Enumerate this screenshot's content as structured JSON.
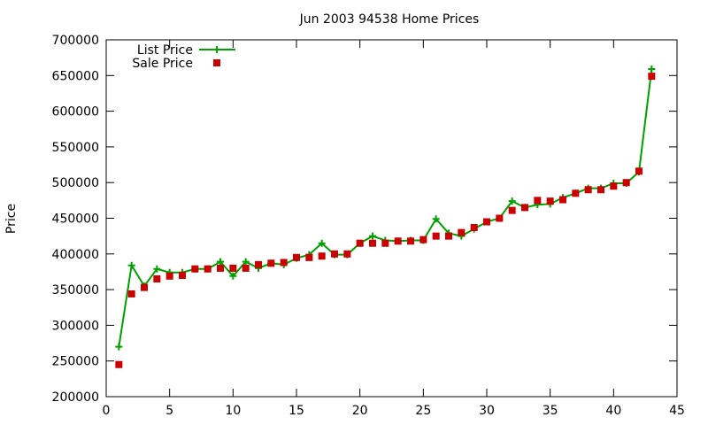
{
  "chart_data": {
    "type": "line",
    "title": "Jun 2003 94538 Home Prices",
    "xlabel": "",
    "ylabel": "Price",
    "xlim": [
      0,
      45
    ],
    "ylim": [
      200000,
      700000
    ],
    "xticks": [
      0,
      5,
      10,
      15,
      20,
      25,
      30,
      35,
      40,
      45
    ],
    "yticks": [
      200000,
      250000,
      300000,
      350000,
      400000,
      450000,
      500000,
      550000,
      600000,
      650000,
      700000
    ],
    "grid": false,
    "legend_position": "top-left",
    "series": [
      {
        "name": "List Price",
        "style": "line-with-plus-markers",
        "color": "#00a000",
        "x": [
          1,
          2,
          3,
          4,
          5,
          6,
          7,
          8,
          9,
          10,
          11,
          12,
          13,
          14,
          15,
          16,
          17,
          18,
          19,
          20,
          21,
          22,
          23,
          24,
          25,
          26,
          27,
          28,
          29,
          30,
          31,
          32,
          33,
          34,
          35,
          36,
          37,
          38,
          39,
          40,
          41,
          42,
          43
        ],
        "values": [
          270000,
          384000,
          355000,
          379000,
          374000,
          374000,
          379000,
          379000,
          389000,
          369000,
          389000,
          380000,
          387000,
          385000,
          394000,
          399000,
          415000,
          399000,
          399000,
          415000,
          425000,
          419000,
          418000,
          419000,
          419000,
          449000,
          429000,
          425000,
          435000,
          445000,
          450000,
          474000,
          465000,
          469000,
          470000,
          479000,
          485000,
          492000,
          492000,
          499000,
          499000,
          515000,
          659000
        ]
      },
      {
        "name": "Sale Price",
        "style": "square-markers",
        "color": "#cc0000",
        "x": [
          1,
          2,
          3,
          4,
          5,
          6,
          7,
          8,
          9,
          10,
          11,
          12,
          13,
          14,
          15,
          16,
          17,
          18,
          19,
          20,
          21,
          22,
          23,
          24,
          25,
          26,
          27,
          28,
          29,
          30,
          31,
          32,
          33,
          34,
          35,
          36,
          37,
          38,
          39,
          40,
          41,
          42,
          43
        ],
        "values": [
          245000,
          344000,
          353000,
          365000,
          369000,
          370000,
          379000,
          379000,
          380000,
          380000,
          380000,
          385000,
          387000,
          388000,
          395000,
          395000,
          397000,
          400000,
          400000,
          415000,
          415000,
          415000,
          418000,
          418000,
          420000,
          425000,
          425000,
          430000,
          437000,
          445000,
          450000,
          461000,
          465000,
          475000,
          474000,
          476000,
          485000,
          490000,
          490000,
          495000,
          500000,
          516000,
          649000
        ]
      }
    ]
  }
}
